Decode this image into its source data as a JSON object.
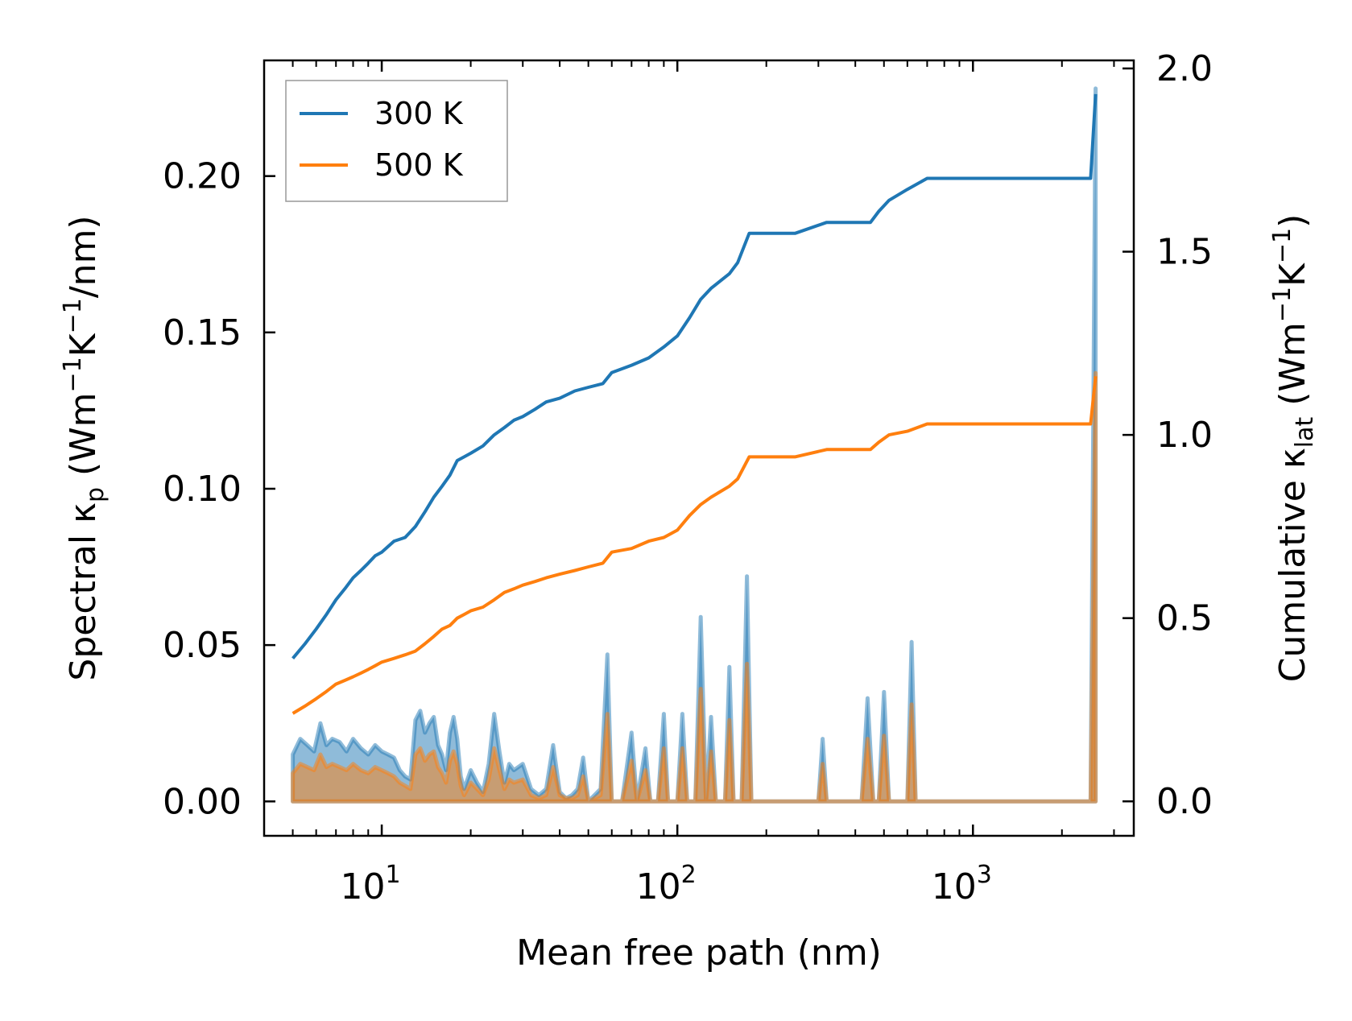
{
  "chart_data": {
    "type": "line",
    "title": "",
    "xlabel": "Mean free path (nm)",
    "xscale": "log",
    "xlim": [
      4.0,
      3500
    ],
    "x_ticks": [
      {
        "value": 10,
        "base": "10",
        "exp": "1"
      },
      {
        "value": 100,
        "base": "10",
        "exp": "2"
      },
      {
        "value": 1000,
        "base": "10",
        "exp": "3"
      }
    ],
    "y_left": {
      "label_pre": "Spectral κ",
      "label_sub": "p",
      "label_post": " (Wm",
      "label_sup1": "−1",
      "label_mid": "K",
      "label_sup2": "−1",
      "label_end": "/nm)",
      "ylim": [
        -0.011,
        0.237
      ],
      "ticks": [
        0.0,
        0.05,
        0.1,
        0.15,
        0.2
      ],
      "tick_labels": [
        "0.00",
        "0.05",
        "0.10",
        "0.15",
        "0.20"
      ]
    },
    "y_right": {
      "label_pre": "Cumulative κ",
      "label_sub": "lat",
      "label_post": " (Wm",
      "label_sup1": "−1",
      "label_mid": "K",
      "label_sup2": "−1",
      "label_end": ")",
      "ylim": [
        -0.094,
        2.022
      ],
      "ticks": [
        0.0,
        0.5,
        1.0,
        1.5,
        2.0
      ],
      "tick_labels": [
        "0.0",
        "0.5",
        "1.0",
        "1.5",
        "2.0"
      ]
    },
    "legend": {
      "position": "top-left"
    },
    "series": [
      {
        "name": "300 K",
        "color": "#1f77b4",
        "cumulative": [
          [
            5.0,
            0.39
          ],
          [
            5.5,
            0.43
          ],
          [
            6.0,
            0.47
          ],
          [
            6.5,
            0.51
          ],
          [
            7.0,
            0.55
          ],
          [
            7.5,
            0.58
          ],
          [
            8.0,
            0.61
          ],
          [
            8.5,
            0.63
          ],
          [
            9.0,
            0.65
          ],
          [
            9.5,
            0.67
          ],
          [
            10.0,
            0.68
          ],
          [
            11.0,
            0.71
          ],
          [
            12.0,
            0.72
          ],
          [
            13.0,
            0.75
          ],
          [
            14.0,
            0.79
          ],
          [
            15.0,
            0.83
          ],
          [
            16.0,
            0.86
          ],
          [
            17.0,
            0.89
          ],
          [
            18.0,
            0.93
          ],
          [
            19.0,
            0.94
          ],
          [
            20.0,
            0.95
          ],
          [
            22.0,
            0.97
          ],
          [
            24.0,
            1.0
          ],
          [
            26.0,
            1.02
          ],
          [
            28.0,
            1.04
          ],
          [
            30.0,
            1.05
          ],
          [
            33.0,
            1.07
          ],
          [
            36.0,
            1.09
          ],
          [
            40.0,
            1.1
          ],
          [
            45.0,
            1.12
          ],
          [
            50.0,
            1.13
          ],
          [
            56.0,
            1.14
          ],
          [
            60.0,
            1.17
          ],
          [
            70.0,
            1.19
          ],
          [
            80.0,
            1.21
          ],
          [
            90.0,
            1.24
          ],
          [
            100.0,
            1.27
          ],
          [
            110.0,
            1.32
          ],
          [
            120.0,
            1.37
          ],
          [
            130.0,
            1.4
          ],
          [
            150.0,
            1.44
          ],
          [
            160.0,
            1.47
          ],
          [
            175.0,
            1.55
          ],
          [
            250.0,
            1.55
          ],
          [
            320.0,
            1.58
          ],
          [
            450.0,
            1.58
          ],
          [
            480.0,
            1.61
          ],
          [
            520.0,
            1.64
          ],
          [
            600.0,
            1.67
          ],
          [
            700.0,
            1.7
          ],
          [
            2500.0,
            1.7
          ],
          [
            2600.0,
            1.93
          ]
        ],
        "spectral": [
          [
            5.0,
            0.015
          ],
          [
            5.3,
            0.02
          ],
          [
            5.6,
            0.018
          ],
          [
            5.9,
            0.016
          ],
          [
            6.2,
            0.025
          ],
          [
            6.5,
            0.018
          ],
          [
            6.8,
            0.02
          ],
          [
            7.2,
            0.019
          ],
          [
            7.6,
            0.016
          ],
          [
            8.0,
            0.02
          ],
          [
            8.5,
            0.017
          ],
          [
            9.0,
            0.015
          ],
          [
            9.5,
            0.018
          ],
          [
            10.0,
            0.016
          ],
          [
            10.5,
            0.015
          ],
          [
            11.0,
            0.014
          ],
          [
            11.5,
            0.01
          ],
          [
            12.0,
            0.008
          ],
          [
            12.5,
            0.007
          ],
          [
            13.0,
            0.026
          ],
          [
            13.5,
            0.029
          ],
          [
            14.0,
            0.022
          ],
          [
            14.5,
            0.025
          ],
          [
            15.0,
            0.027
          ],
          [
            15.5,
            0.018
          ],
          [
            16.0,
            0.015
          ],
          [
            16.5,
            0.01
          ],
          [
            17.0,
            0.022
          ],
          [
            17.5,
            0.027
          ],
          [
            18.0,
            0.02
          ],
          [
            18.5,
            0.008
          ],
          [
            19.0,
            0.004
          ],
          [
            20.0,
            0.01
          ],
          [
            21.0,
            0.006
          ],
          [
            22.0,
            0.003
          ],
          [
            23.0,
            0.012
          ],
          [
            24.0,
            0.028
          ],
          [
            25.0,
            0.016
          ],
          [
            26.0,
            0.006
          ],
          [
            27.0,
            0.012
          ],
          [
            28.0,
            0.01
          ],
          [
            30.0,
            0.012
          ],
          [
            32.0,
            0.004
          ],
          [
            34.0,
            0.002
          ],
          [
            36.0,
            0.004
          ],
          [
            38.0,
            0.018
          ],
          [
            40.0,
            0.003
          ],
          [
            42.0,
            0.001
          ],
          [
            44.0,
            0.002
          ],
          [
            46.0,
            0.004
          ],
          [
            48.0,
            0.014
          ],
          [
            50.0,
            0.0
          ],
          [
            55.0,
            0.004
          ],
          [
            58.0,
            0.047
          ],
          [
            60.0,
            0.0
          ],
          [
            65.0,
            0.0
          ],
          [
            70.0,
            0.022
          ],
          [
            73.0,
            0.0
          ],
          [
            78.0,
            0.017
          ],
          [
            81.0,
            0.0
          ],
          [
            86.0,
            0.0
          ],
          [
            90.0,
            0.028
          ],
          [
            93.0,
            0.0
          ],
          [
            100.0,
            0.0
          ],
          [
            104.0,
            0.028
          ],
          [
            108.0,
            0.0
          ],
          [
            115.0,
            0.0
          ],
          [
            120.0,
            0.059
          ],
          [
            125.0,
            0.0
          ],
          [
            130.0,
            0.027
          ],
          [
            135.0,
            0.0
          ],
          [
            145.0,
            0.0
          ],
          [
            150.0,
            0.043
          ],
          [
            155.0,
            0.0
          ],
          [
            165.0,
            0.0
          ],
          [
            172.0,
            0.072
          ],
          [
            178.0,
            0.0
          ],
          [
            300.0,
            0.0
          ],
          [
            310.0,
            0.02
          ],
          [
            320.0,
            0.0
          ],
          [
            420.0,
            0.0
          ],
          [
            440.0,
            0.033
          ],
          [
            460.0,
            0.0
          ],
          [
            480.0,
            0.0
          ],
          [
            500.0,
            0.035
          ],
          [
            520.0,
            0.0
          ],
          [
            600.0,
            0.0
          ],
          [
            620.0,
            0.051
          ],
          [
            640.0,
            0.0
          ],
          [
            2500.0,
            0.0
          ],
          [
            2600.0,
            0.228
          ]
        ]
      },
      {
        "name": "500 K",
        "color": "#ff7f0e",
        "cumulative": [
          [
            5.0,
            0.24
          ],
          [
            5.5,
            0.26
          ],
          [
            6.0,
            0.28
          ],
          [
            6.5,
            0.3
          ],
          [
            7.0,
            0.32
          ],
          [
            7.5,
            0.33
          ],
          [
            8.0,
            0.34
          ],
          [
            8.5,
            0.35
          ],
          [
            9.0,
            0.36
          ],
          [
            9.5,
            0.37
          ],
          [
            10.0,
            0.38
          ],
          [
            11.0,
            0.39
          ],
          [
            12.0,
            0.4
          ],
          [
            13.0,
            0.41
          ],
          [
            14.0,
            0.43
          ],
          [
            15.0,
            0.45
          ],
          [
            16.0,
            0.47
          ],
          [
            17.0,
            0.48
          ],
          [
            18.0,
            0.5
          ],
          [
            19.0,
            0.51
          ],
          [
            20.0,
            0.52
          ],
          [
            22.0,
            0.53
          ],
          [
            24.0,
            0.55
          ],
          [
            26.0,
            0.57
          ],
          [
            28.0,
            0.58
          ],
          [
            30.0,
            0.59
          ],
          [
            33.0,
            0.6
          ],
          [
            36.0,
            0.61
          ],
          [
            40.0,
            0.62
          ],
          [
            45.0,
            0.63
          ],
          [
            50.0,
            0.64
          ],
          [
            56.0,
            0.65
          ],
          [
            60.0,
            0.68
          ],
          [
            70.0,
            0.69
          ],
          [
            80.0,
            0.71
          ],
          [
            90.0,
            0.72
          ],
          [
            100.0,
            0.74
          ],
          [
            110.0,
            0.78
          ],
          [
            120.0,
            0.81
          ],
          [
            130.0,
            0.83
          ],
          [
            150.0,
            0.86
          ],
          [
            160.0,
            0.88
          ],
          [
            175.0,
            0.94
          ],
          [
            250.0,
            0.94
          ],
          [
            320.0,
            0.96
          ],
          [
            450.0,
            0.96
          ],
          [
            480.0,
            0.98
          ],
          [
            520.0,
            1.0
          ],
          [
            600.0,
            1.01
          ],
          [
            700.0,
            1.03
          ],
          [
            2500.0,
            1.03
          ],
          [
            2600.0,
            1.16
          ]
        ],
        "spectral": [
          [
            5.0,
            0.009
          ],
          [
            5.3,
            0.012
          ],
          [
            5.6,
            0.011
          ],
          [
            5.9,
            0.01
          ],
          [
            6.2,
            0.015
          ],
          [
            6.5,
            0.011
          ],
          [
            6.8,
            0.012
          ],
          [
            7.2,
            0.011
          ],
          [
            7.6,
            0.01
          ],
          [
            8.0,
            0.012
          ],
          [
            8.5,
            0.01
          ],
          [
            9.0,
            0.009
          ],
          [
            9.5,
            0.011
          ],
          [
            10.0,
            0.01
          ],
          [
            10.5,
            0.009
          ],
          [
            11.0,
            0.008
          ],
          [
            11.5,
            0.006
          ],
          [
            12.0,
            0.005
          ],
          [
            12.5,
            0.004
          ],
          [
            13.0,
            0.015
          ],
          [
            13.5,
            0.017
          ],
          [
            14.0,
            0.013
          ],
          [
            14.5,
            0.015
          ],
          [
            15.0,
            0.016
          ],
          [
            15.5,
            0.011
          ],
          [
            16.0,
            0.009
          ],
          [
            16.5,
            0.006
          ],
          [
            17.0,
            0.013
          ],
          [
            17.5,
            0.016
          ],
          [
            18.0,
            0.012
          ],
          [
            18.5,
            0.005
          ],
          [
            19.0,
            0.002
          ],
          [
            20.0,
            0.006
          ],
          [
            21.0,
            0.004
          ],
          [
            22.0,
            0.002
          ],
          [
            23.0,
            0.007
          ],
          [
            24.0,
            0.017
          ],
          [
            25.0,
            0.01
          ],
          [
            26.0,
            0.004
          ],
          [
            27.0,
            0.007
          ],
          [
            28.0,
            0.006
          ],
          [
            30.0,
            0.007
          ],
          [
            32.0,
            0.002
          ],
          [
            34.0,
            0.001
          ],
          [
            36.0,
            0.002
          ],
          [
            38.0,
            0.011
          ],
          [
            40.0,
            0.002
          ],
          [
            42.0,
            0.001
          ],
          [
            44.0,
            0.001
          ],
          [
            46.0,
            0.002
          ],
          [
            48.0,
            0.008
          ],
          [
            50.0,
            0.0
          ],
          [
            55.0,
            0.002
          ],
          [
            58.0,
            0.028
          ],
          [
            60.0,
            0.0
          ],
          [
            65.0,
            0.0
          ],
          [
            70.0,
            0.013
          ],
          [
            73.0,
            0.0
          ],
          [
            78.0,
            0.01
          ],
          [
            81.0,
            0.0
          ],
          [
            86.0,
            0.0
          ],
          [
            90.0,
            0.017
          ],
          [
            93.0,
            0.0
          ],
          [
            100.0,
            0.0
          ],
          [
            104.0,
            0.017
          ],
          [
            108.0,
            0.0
          ],
          [
            115.0,
            0.0
          ],
          [
            120.0,
            0.036
          ],
          [
            125.0,
            0.0
          ],
          [
            130.0,
            0.016
          ],
          [
            135.0,
            0.0
          ],
          [
            145.0,
            0.0
          ],
          [
            150.0,
            0.026
          ],
          [
            155.0,
            0.0
          ],
          [
            165.0,
            0.0
          ],
          [
            172.0,
            0.044
          ],
          [
            178.0,
            0.0
          ],
          [
            300.0,
            0.0
          ],
          [
            310.0,
            0.012
          ],
          [
            320.0,
            0.0
          ],
          [
            420.0,
            0.0
          ],
          [
            440.0,
            0.02
          ],
          [
            460.0,
            0.0
          ],
          [
            480.0,
            0.0
          ],
          [
            500.0,
            0.021
          ],
          [
            520.0,
            0.0
          ],
          [
            600.0,
            0.0
          ],
          [
            620.0,
            0.031
          ],
          [
            640.0,
            0.0
          ],
          [
            2500.0,
            0.0
          ],
          [
            2600.0,
            0.137
          ]
        ]
      }
    ]
  }
}
